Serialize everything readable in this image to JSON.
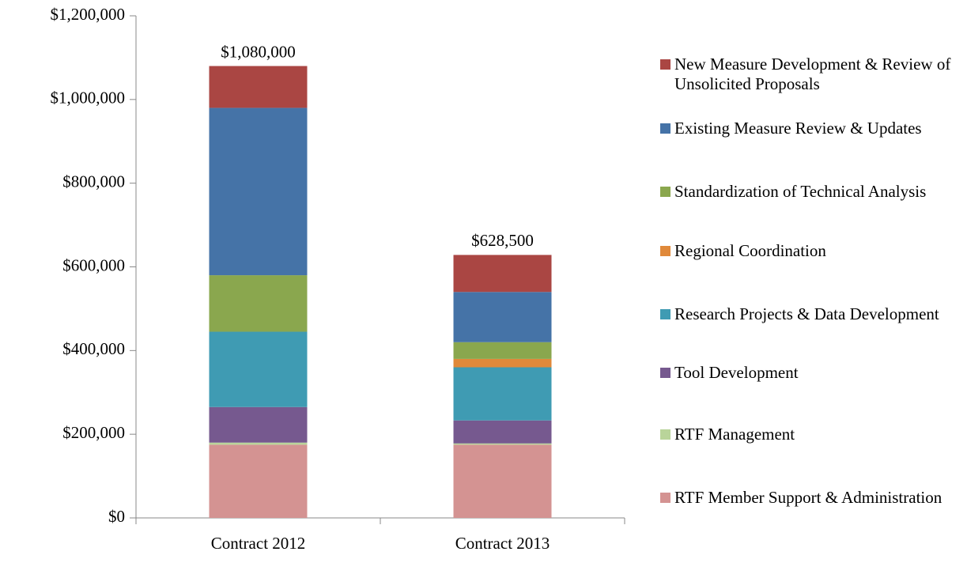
{
  "chart_data": {
    "type": "stacked_bar",
    "categories": [
      "Contract 2012",
      "Contract 2013"
    ],
    "series": [
      {
        "name": "RTF Member Support & Administration",
        "color": "#d49392",
        "values": [
          175000,
          175000
        ]
      },
      {
        "name": "RTF Management",
        "color": "#b9d49a",
        "values": [
          5000,
          3000
        ]
      },
      {
        "name": "Tool Development",
        "color": "#76598f",
        "values": [
          85000,
          55000
        ]
      },
      {
        "name": "Research Projects & Data Development",
        "color": "#3f9bb3",
        "values": [
          180000,
          127000
        ]
      },
      {
        "name": "Regional Coordination",
        "color": "#e0893a",
        "values": [
          0,
          20000
        ]
      },
      {
        "name": "Standardization of Technical Analysis",
        "color": "#8aa74e",
        "values": [
          135000,
          40000
        ]
      },
      {
        "name": "Existing Measure Review & Updates",
        "color": "#4573a7",
        "values": [
          400000,
          120000
        ]
      },
      {
        "name": "New Measure Development & Review of Unsolicited Proposals",
        "color": "#aa4643",
        "values": [
          100000,
          88500
        ]
      }
    ],
    "totals": [
      1080000,
      628500
    ],
    "total_labels": [
      "$1,080,000",
      "$628,500"
    ],
    "ylim": [
      0,
      1200000
    ],
    "yticks": [
      {
        "value": 0,
        "label": "$0"
      },
      {
        "value": 200000,
        "label": "$200,000"
      },
      {
        "value": 400000,
        "label": "$400,000"
      },
      {
        "value": 600000,
        "label": "$600,000"
      },
      {
        "value": 800000,
        "label": "$800,000"
      },
      {
        "value": 1000000,
        "label": "$1,000,000"
      },
      {
        "value": 1200000,
        "label": "$1,200,000"
      }
    ],
    "legend": "right"
  }
}
